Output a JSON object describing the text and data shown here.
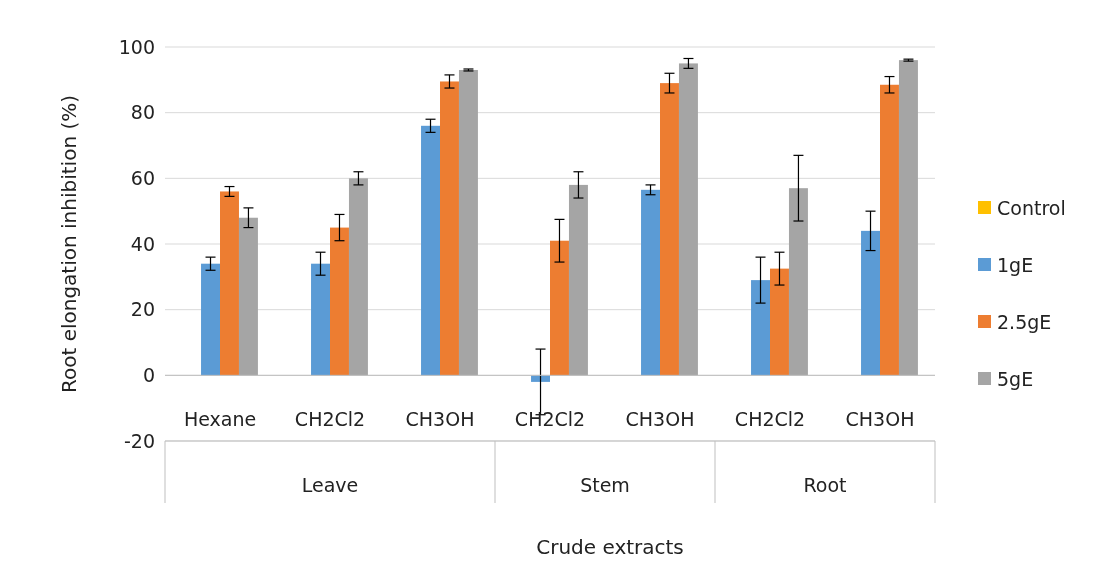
{
  "chart_data": {
    "type": "bar",
    "xlabel": "Crude extracts",
    "ylabel": "Root elongation inhibition (%)",
    "categories": [
      "Hexane",
      "CH2Cl2",
      "CH3OH",
      "CH2Cl2",
      "CH3OH",
      "CH2Cl2",
      "CH3OH"
    ],
    "series": [
      {
        "name": "Control",
        "color": "#ffc000",
        "values": [
          0,
          0,
          0,
          0,
          0,
          0,
          0
        ]
      },
      {
        "name": "1gE",
        "color": "#5b9bd5",
        "values": [
          34,
          34,
          76,
          -2,
          56.5,
          29,
          44
        ],
        "errors": [
          2,
          3.5,
          2,
          10,
          1.5,
          7,
          6
        ]
      },
      {
        "name": "2.5gE",
        "color": "#ed7d31",
        "values": [
          56,
          45,
          89.5,
          41,
          89,
          32.5,
          88.5
        ],
        "errors": [
          1.5,
          4,
          2,
          6.5,
          3,
          5,
          2.5
        ]
      },
      {
        "name": "5gE",
        "color": "#a5a5a5",
        "values": [
          48,
          60,
          93,
          58,
          95,
          57,
          96
        ],
        "errors": [
          3,
          2,
          0.3,
          4,
          1.5,
          10,
          0.3
        ]
      }
    ],
    "annotations": [
      "Leave",
      "Stem",
      "Root"
    ],
    "ylim": [
      -20,
      100
    ],
    "yticks": [
      -20,
      0,
      20,
      40,
      60,
      80,
      100
    ],
    "grid": "y",
    "legend": "right"
  }
}
